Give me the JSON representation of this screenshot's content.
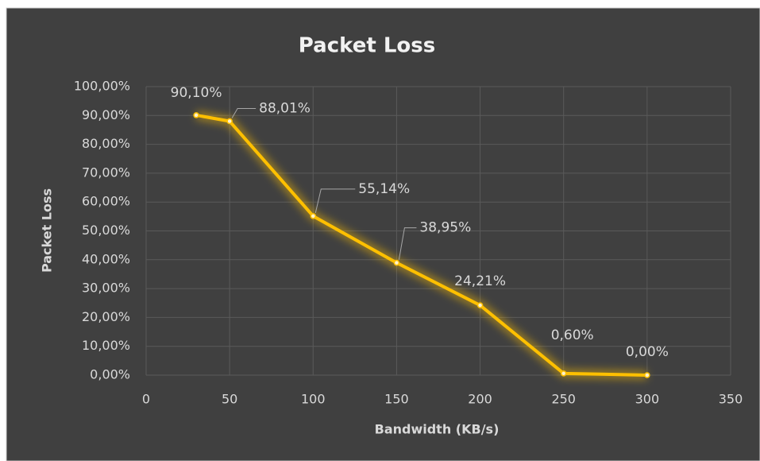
{
  "chart_data": {
    "type": "line",
    "title": "Packet Loss",
    "x_label": "Bandwidth (KB/s)",
    "y_label": "Packet Loss",
    "x": [
      30,
      50,
      100,
      150,
      200,
      250,
      300
    ],
    "series": [
      {
        "name": "Packet Loss",
        "color": "#ffc000",
        "values": [
          90.1,
          88.01,
          55.14,
          38.95,
          24.21,
          0.6,
          0.0
        ],
        "value_labels": [
          "90,10%",
          "88,01%",
          "55,14%",
          "38,95%",
          "24,21%",
          "0,60%",
          "0,00%"
        ]
      }
    ],
    "xlim": [
      0,
      350
    ],
    "xticks": [
      0,
      50,
      100,
      150,
      200,
      250,
      300,
      350
    ],
    "ylim": [
      0,
      100
    ],
    "yticks": [
      {
        "value": 0,
        "label": "0,00%"
      },
      {
        "value": 10,
        "label": "10,00%"
      },
      {
        "value": 20,
        "label": "20,00%"
      },
      {
        "value": 30,
        "label": "30,00%"
      },
      {
        "value": 40,
        "label": "40,00%"
      },
      {
        "value": 50,
        "label": "50,00%"
      },
      {
        "value": 60,
        "label": "60,00%"
      },
      {
        "value": 70,
        "label": "70,00%"
      },
      {
        "value": 80,
        "label": "80,00%"
      },
      {
        "value": 90,
        "label": "90,00%"
      },
      {
        "value": 100,
        "label": "100,00%"
      }
    ],
    "grid": true
  }
}
